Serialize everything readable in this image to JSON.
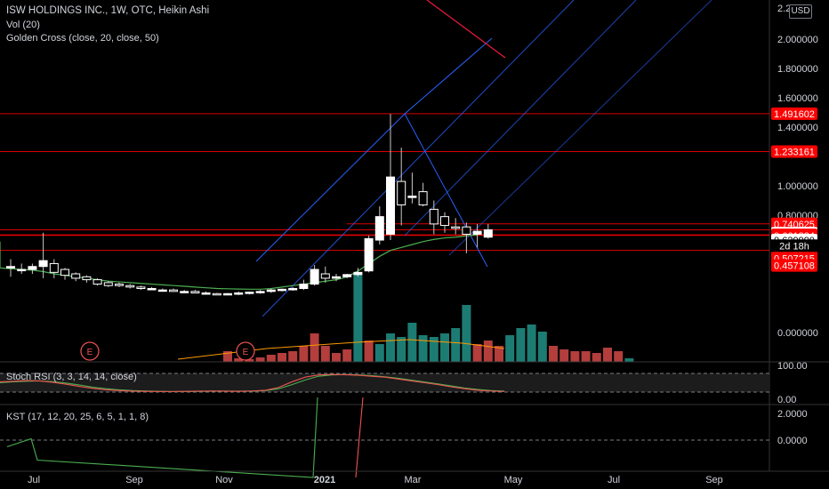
{
  "header": {
    "symbol_line": "ISW HOLDINGS INC., 1W, OTC, Heikin Ashi",
    "vol_legend": "Vol (20)",
    "golden_cross_legend": "Golden Cross (close, 20, close, 50)",
    "currency_badge": "USD",
    "top_tick_partial": "2.2"
  },
  "stoch": {
    "legend": "Stoch RSI (3, 3, 14, 14, close)",
    "axis_labels": [
      "100.00",
      "0.00"
    ]
  },
  "kst": {
    "legend": "KST (17, 12, 20, 25, 6, 5, 1, 1, 8)",
    "axis_labels": [
      "2.0000",
      "0.0000"
    ]
  },
  "colors": {
    "background": "#000000",
    "up_candle": "#ffffff",
    "down_candle": "#000000",
    "volume_up": "#26a69a",
    "volume_down": "#ef5350",
    "golden_cross_line": "#4caf50",
    "vol_ma_line": "#ff9800",
    "level_line": "#ff0000",
    "trend_line": "#2962ff",
    "stoch_k": "#ef5350",
    "stoch_d": "#4caf50",
    "kst_red": "#ef5350",
    "kst_green": "#4caf50"
  },
  "chart_data": {
    "type": "candlestick",
    "y_axis_labels": [
      "2.000000",
      "1.800000",
      "1.600000",
      "1.400000",
      "1.000000",
      "0.800000",
      "0.000000"
    ],
    "x_axis_labels": [
      "Jul",
      "Sep",
      "Nov",
      "2021",
      "Mar",
      "May",
      "Jul",
      "Sep"
    ],
    "price_labels": [
      {
        "value": 1.491602,
        "text": "1.491602",
        "style": "red"
      },
      {
        "value": 1.233161,
        "text": "1.233161",
        "style": "red"
      },
      {
        "value": 0.740625,
        "text": "0.740625",
        "style": "red"
      },
      {
        "value": 0.677073,
        "text": "0.677073",
        "style": "white"
      },
      {
        "value": 0.66593,
        "text": "0.665930",
        "style": "red"
      },
      {
        "value": 0.661884,
        "text": "0.661884",
        "style": "red"
      },
      {
        "value": 0.62999,
        "text": "0.629990",
        "style": "white"
      },
      {
        "value": 0.570594,
        "text": "0.570594",
        "style": "red"
      },
      {
        "value": 0.507215,
        "text": "0.507215",
        "style": "red"
      },
      {
        "value": 0.457108,
        "text": "0.457108",
        "style": "red"
      }
    ],
    "countdown_label": "2d 18h",
    "horizontal_levels": [
      1.491602,
      1.233161,
      0.740625,
      0.7,
      0.66593,
      0.661884,
      0.56
    ],
    "candles": [
      {
        "o": 0.44,
        "h": 0.5,
        "l": 0.38,
        "c": 0.45
      },
      {
        "o": 0.43,
        "h": 0.47,
        "l": 0.4,
        "c": 0.43
      },
      {
        "o": 0.43,
        "h": 0.47,
        "l": 0.4,
        "c": 0.45
      },
      {
        "o": 0.45,
        "h": 0.68,
        "l": 0.37,
        "c": 0.49
      },
      {
        "o": 0.47,
        "h": 0.5,
        "l": 0.37,
        "c": 0.41
      },
      {
        "o": 0.43,
        "h": 0.44,
        "l": 0.36,
        "c": 0.39
      },
      {
        "o": 0.4,
        "h": 0.41,
        "l": 0.35,
        "c": 0.37
      },
      {
        "o": 0.38,
        "h": 0.39,
        "l": 0.34,
        "c": 0.36
      },
      {
        "o": 0.36,
        "h": 0.37,
        "l": 0.32,
        "c": 0.33
      },
      {
        "o": 0.34,
        "h": 0.35,
        "l": 0.31,
        "c": 0.32
      },
      {
        "o": 0.33,
        "h": 0.34,
        "l": 0.31,
        "c": 0.32
      },
      {
        "o": 0.32,
        "h": 0.33,
        "l": 0.3,
        "c": 0.31
      },
      {
        "o": 0.31,
        "h": 0.32,
        "l": 0.29,
        "c": 0.3
      },
      {
        "o": 0.3,
        "h": 0.31,
        "l": 0.29,
        "c": 0.3
      },
      {
        "o": 0.29,
        "h": 0.3,
        "l": 0.28,
        "c": 0.29
      },
      {
        "o": 0.29,
        "h": 0.3,
        "l": 0.28,
        "c": 0.28
      },
      {
        "o": 0.28,
        "h": 0.29,
        "l": 0.27,
        "c": 0.28
      },
      {
        "o": 0.28,
        "h": 0.29,
        "l": 0.27,
        "c": 0.27
      },
      {
        "o": 0.27,
        "h": 0.28,
        "l": 0.26,
        "c": 0.27
      },
      {
        "o": 0.265,
        "h": 0.27,
        "l": 0.255,
        "c": 0.26
      },
      {
        "o": 0.26,
        "h": 0.27,
        "l": 0.255,
        "c": 0.265
      },
      {
        "o": 0.265,
        "h": 0.28,
        "l": 0.255,
        "c": 0.27
      },
      {
        "o": 0.27,
        "h": 0.28,
        "l": 0.26,
        "c": 0.275
      },
      {
        "o": 0.275,
        "h": 0.29,
        "l": 0.265,
        "c": 0.28
      },
      {
        "o": 0.28,
        "h": 0.3,
        "l": 0.27,
        "c": 0.29
      },
      {
        "o": 0.29,
        "h": 0.3,
        "l": 0.28,
        "c": 0.295
      },
      {
        "o": 0.295,
        "h": 0.31,
        "l": 0.285,
        "c": 0.3
      },
      {
        "o": 0.3,
        "h": 0.36,
        "l": 0.29,
        "c": 0.33
      },
      {
        "o": 0.33,
        "h": 0.46,
        "l": 0.32,
        "c": 0.43
      },
      {
        "o": 0.4,
        "h": 0.45,
        "l": 0.34,
        "c": 0.37
      },
      {
        "o": 0.37,
        "h": 0.4,
        "l": 0.35,
        "c": 0.38
      },
      {
        "o": 0.38,
        "h": 0.4,
        "l": 0.37,
        "c": 0.395
      },
      {
        "o": 0.395,
        "h": 0.44,
        "l": 0.38,
        "c": 0.41
      },
      {
        "o": 0.42,
        "h": 0.66,
        "l": 0.41,
        "c": 0.64
      },
      {
        "o": 0.63,
        "h": 0.86,
        "l": 0.6,
        "c": 0.79
      },
      {
        "o": 0.67,
        "h": 1.49,
        "l": 0.63,
        "c": 1.06
      },
      {
        "o": 1.03,
        "h": 1.26,
        "l": 0.73,
        "c": 0.87
      },
      {
        "o": 0.92,
        "h": 1.09,
        "l": 0.88,
        "c": 0.93
      },
      {
        "o": 0.96,
        "h": 1.02,
        "l": 0.86,
        "c": 0.87
      },
      {
        "o": 0.84,
        "h": 0.9,
        "l": 0.67,
        "c": 0.74
      },
      {
        "o": 0.79,
        "h": 0.82,
        "l": 0.68,
        "c": 0.73
      },
      {
        "o": 0.72,
        "h": 0.78,
        "l": 0.67,
        "c": 0.71
      },
      {
        "o": 0.72,
        "h": 0.75,
        "l": 0.54,
        "c": 0.67
      },
      {
        "o": 0.67,
        "h": 0.74,
        "l": 0.58,
        "c": 0.69
      },
      {
        "o": 0.65,
        "h": 0.74,
        "l": 0.64,
        "c": 0.7
      }
    ],
    "golden_cross_ma": [
      0.44,
      0.435,
      0.43,
      0.425,
      0.415,
      0.4,
      0.39,
      0.38,
      0.37,
      0.36,
      0.35,
      0.345,
      0.34,
      0.335,
      0.33,
      0.325,
      0.32,
      0.315,
      0.31,
      0.305,
      0.3,
      0.298,
      0.296,
      0.295,
      0.295,
      0.3,
      0.31,
      0.32,
      0.33,
      0.34,
      0.35,
      0.36,
      0.38,
      0.42,
      0.47,
      0.52,
      0.56,
      0.58,
      0.6,
      0.62,
      0.635,
      0.645,
      0.65,
      0.66,
      0.665
    ],
    "volume_max": 5.0,
    "volume": [
      {
        "i": 20,
        "v": 0.6,
        "up": false
      },
      {
        "i": 21,
        "v": 0.2,
        "up": false
      },
      {
        "i": 22,
        "v": 0.15,
        "up": false
      },
      {
        "i": 23,
        "v": 0.25,
        "up": false
      },
      {
        "i": 24,
        "v": 0.4,
        "up": false
      },
      {
        "i": 25,
        "v": 0.5,
        "up": false
      },
      {
        "i": 26,
        "v": 0.6,
        "up": false
      },
      {
        "i": 27,
        "v": 0.9,
        "up": false
      },
      {
        "i": 28,
        "v": 1.6,
        "up": false
      },
      {
        "i": 29,
        "v": 0.9,
        "up": false
      },
      {
        "i": 30,
        "v": 0.5,
        "up": false
      },
      {
        "i": 31,
        "v": 0.7,
        "up": false
      },
      {
        "i": 32,
        "v": 4.9,
        "up": true
      },
      {
        "i": 33,
        "v": 1.2,
        "up": false
      },
      {
        "i": 34,
        "v": 1.0,
        "up": true
      },
      {
        "i": 35,
        "v": 1.6,
        "up": true
      },
      {
        "i": 36,
        "v": 1.4,
        "up": true
      },
      {
        "i": 37,
        "v": 2.2,
        "up": true
      },
      {
        "i": 38,
        "v": 1.5,
        "up": true
      },
      {
        "i": 39,
        "v": 1.4,
        "up": true
      },
      {
        "i": 40,
        "v": 1.6,
        "up": true
      },
      {
        "i": 41,
        "v": 1.9,
        "up": true
      },
      {
        "i": 42,
        "v": 3.2,
        "up": true
      },
      {
        "i": 43,
        "v": 1.0,
        "up": false
      },
      {
        "i": 44,
        "v": 1.2,
        "up": false
      },
      {
        "i": 45,
        "v": 0.9,
        "up": false
      },
      {
        "i": 46,
        "v": 1.5,
        "up": true
      },
      {
        "i": 47,
        "v": 1.9,
        "up": true
      },
      {
        "i": 48,
        "v": 2.1,
        "up": true
      },
      {
        "i": 49,
        "v": 1.7,
        "up": true
      },
      {
        "i": 50,
        "v": 0.9,
        "up": false
      },
      {
        "i": 51,
        "v": 0.7,
        "up": false
      },
      {
        "i": 52,
        "v": 0.6,
        "up": false
      },
      {
        "i": 53,
        "v": 0.6,
        "up": false
      },
      {
        "i": 54,
        "v": 0.5,
        "up": false
      },
      {
        "i": 55,
        "v": 0.8,
        "up": false
      },
      {
        "i": 56,
        "v": 0.6,
        "up": false
      },
      {
        "i": 57,
        "v": 0.2,
        "up": true
      }
    ],
    "stoch_k": [
      55,
      58,
      62,
      60,
      52,
      42,
      30,
      20,
      12,
      8,
      5,
      4,
      3,
      3,
      4,
      5,
      6,
      5,
      4,
      6,
      10,
      25,
      55,
      80,
      92,
      95,
      93,
      90,
      85,
      80,
      70,
      60,
      50,
      40,
      28,
      18,
      10,
      6,
      3
    ],
    "stoch_d": [
      50,
      55,
      58,
      60,
      56,
      48,
      38,
      26,
      18,
      12,
      8,
      6,
      4,
      3,
      3,
      4,
      5,
      5,
      5,
      5,
      8,
      18,
      40,
      65,
      85,
      92,
      94,
      92,
      88,
      82,
      74,
      64,
      54,
      44,
      33,
      22,
      14,
      8,
      5
    ],
    "kst_red": [
      [
        400,
        -2.8
      ],
      [
        408,
        3.2
      ]
    ],
    "kst_green": [
      [
        8,
        -0.5
      ],
      [
        35,
        0.1
      ],
      [
        42,
        -1.5
      ],
      [
        352,
        -2.8
      ],
      [
        357,
        3.2
      ]
    ]
  }
}
